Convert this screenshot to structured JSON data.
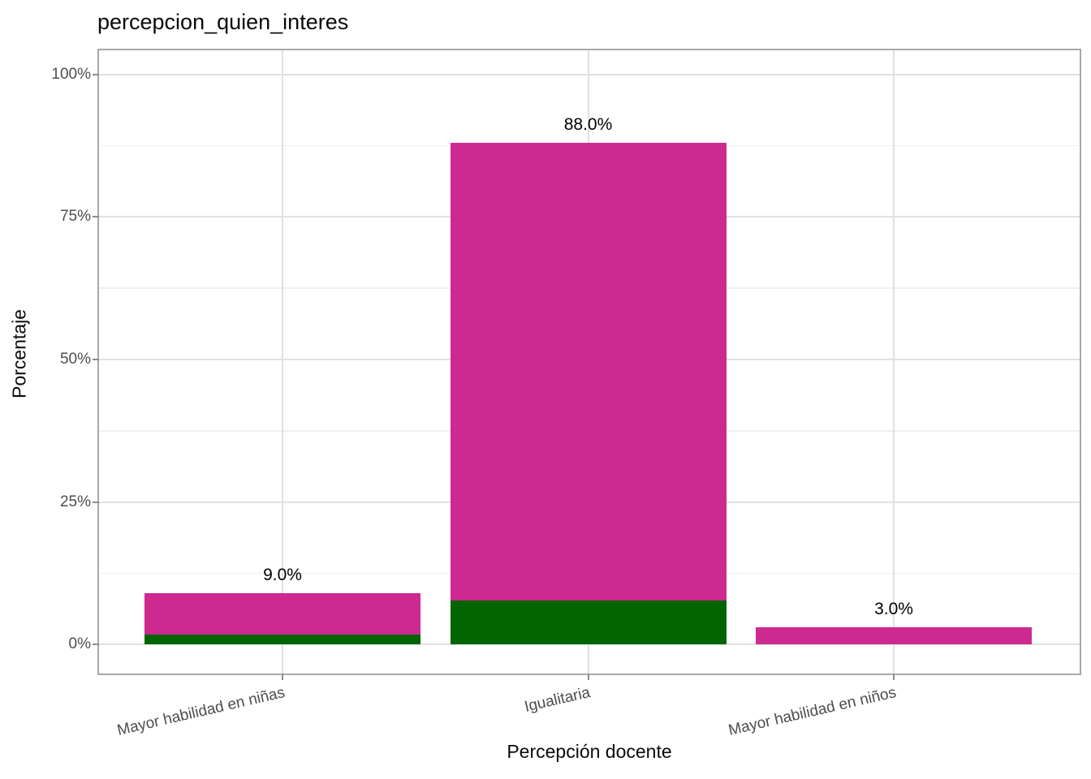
{
  "title": "percepcion_quien_interes",
  "axes": {
    "x_title": "Percepción docente",
    "y_title": "Porcentaje"
  },
  "chart_data": {
    "type": "bar",
    "stacked": true,
    "title": "percepcion_quien_interes",
    "xlabel": "Percepción docente",
    "ylabel": "Porcentaje",
    "categories": [
      "Mayor habilidad en niñas",
      "Igualitaria",
      "Mayor habilidad en niños"
    ],
    "series": [
      {
        "name": "green-bottom-segment",
        "color": "#006400",
        "values": [
          1.7,
          7.7,
          0
        ]
      },
      {
        "name": "magenta-top-segment",
        "color": "#CD2990",
        "values": [
          7.3,
          80.3,
          3.0
        ]
      }
    ],
    "totals": [
      9.0,
      88.0,
      3.0
    ],
    "bar_value_labels": [
      "9.0%",
      "88.0%",
      "3.0%"
    ],
    "y_tick_labels": [
      "0%",
      "25%",
      "50%",
      "75%",
      "100%"
    ],
    "y_tick_values": [
      0,
      25,
      50,
      75,
      100
    ],
    "ylim": [
      0,
      100
    ],
    "grid": "horizontal major + minor, vertical major at category centers",
    "legend": "none"
  },
  "colors": {
    "bar_magenta": "#CD2990",
    "bar_green": "#006400",
    "panel_border": "#a8a8a8",
    "grid_major": "#e0e0e0",
    "grid_minor": "#efefef",
    "axis_text": "#4d4d4d",
    "tick_mark": "#8c8c8c",
    "title_text": "#0a0a0a"
  }
}
